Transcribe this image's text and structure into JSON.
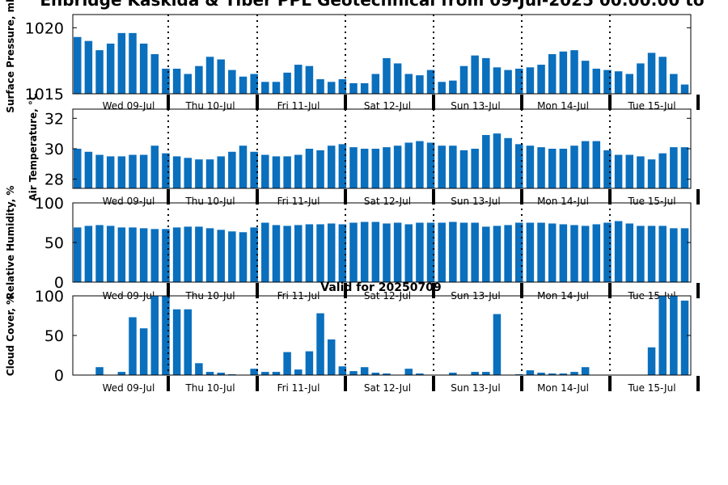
{
  "chart_data": {
    "title": "Enbridge  Kaskida & Tiber PPL Geotechnical from 09-Jul-2025 00:00:00 to",
    "subtitle": "Valid for 20250709",
    "type": "bar",
    "day_labels": [
      "Wed 09-Jul",
      "Thu 10-Jul",
      "Fri 11-Jul",
      "Sat 12-Jul",
      "Sun 13-Jul",
      "Mon 14-Jul",
      "Tue 15-Jul"
    ],
    "bars_per_day": 8,
    "color": "#0a6fbd",
    "panels": [
      {
        "name": "surface-pressure",
        "ylabel": "Surface Pressure, mb",
        "ylim": [
          1015,
          1021
        ],
        "yticks": [
          1015,
          1020
        ],
        "values": [
          1019.3,
          1019.0,
          1018.3,
          1018.8,
          1019.6,
          1019.6,
          1018.8,
          1018.0,
          1016.9,
          1016.9,
          1016.5,
          1017.1,
          1017.8,
          1017.6,
          1016.8,
          1016.3,
          1016.5,
          1015.9,
          1015.9,
          1016.6,
          1017.2,
          1017.1,
          1016.1,
          1015.9,
          1016.1,
          1015.8,
          1015.8,
          1016.5,
          1017.7,
          1017.3,
          1016.5,
          1016.4,
          1016.8,
          1015.9,
          1016.0,
          1017.1,
          1017.9,
          1017.7,
          1017.0,
          1016.8,
          1016.9,
          1017.0,
          1017.2,
          1018.0,
          1018.2,
          1018.3,
          1017.5,
          1016.9,
          1016.8,
          1016.7,
          1016.5,
          1017.3,
          1018.1,
          1017.8,
          1016.5,
          1015.7
        ]
      },
      {
        "name": "air-temperature",
        "ylabel": "Air Temperature, °C",
        "ylim": [
          27.4,
          32.6
        ],
        "yticks": [
          28,
          30,
          32
        ],
        "values": [
          30.0,
          29.8,
          29.6,
          29.5,
          29.5,
          29.6,
          29.6,
          30.2,
          29.7,
          29.5,
          29.4,
          29.3,
          29.3,
          29.5,
          29.8,
          30.2,
          29.8,
          29.6,
          29.5,
          29.5,
          29.6,
          30.0,
          29.9,
          30.2,
          30.3,
          30.1,
          30.0,
          30.0,
          30.1,
          30.2,
          30.4,
          30.5,
          30.4,
          30.2,
          30.2,
          29.9,
          30.0,
          30.9,
          31.0,
          30.7,
          30.3,
          30.2,
          30.1,
          30.0,
          30.0,
          30.2,
          30.5,
          30.5,
          29.9,
          29.6,
          29.6,
          29.5,
          29.3,
          29.7,
          30.1,
          30.1
        ]
      },
      {
        "name": "relative-humidity",
        "ylabel": "Relative Humidity, %",
        "ylim": [
          0,
          100
        ],
        "yticks": [
          0,
          50,
          100
        ],
        "values": [
          69,
          71,
          72,
          71,
          69,
          69,
          68,
          67,
          67,
          69,
          70,
          70,
          68,
          66,
          64,
          63,
          69,
          75,
          72,
          71,
          72,
          73,
          73,
          74,
          73,
          75,
          76,
          76,
          74,
          75,
          73,
          75,
          75,
          75,
          76,
          75,
          75,
          70,
          71,
          72,
          75,
          75,
          75,
          74,
          73,
          72,
          71,
          73,
          75,
          77,
          74,
          71,
          71,
          71,
          68,
          68
        ]
      },
      {
        "name": "cloud-cover",
        "ylabel": "Cloud Cover, %",
        "ylim": [
          0,
          100
        ],
        "yticks": [
          0,
          50,
          100
        ],
        "values": [
          0,
          0,
          10,
          0,
          4,
          73,
          59,
          100,
          100,
          83,
          83,
          15,
          4,
          3,
          1,
          0,
          8,
          4,
          4,
          29,
          7,
          30,
          78,
          45,
          11,
          5,
          10,
          3,
          2,
          0,
          8,
          2,
          0,
          0,
          3,
          0,
          4,
          4,
          77,
          0,
          1,
          6,
          3,
          2,
          2,
          4,
          10,
          0,
          0,
          0,
          0,
          0,
          35,
          100,
          100,
          94
        ]
      }
    ]
  }
}
